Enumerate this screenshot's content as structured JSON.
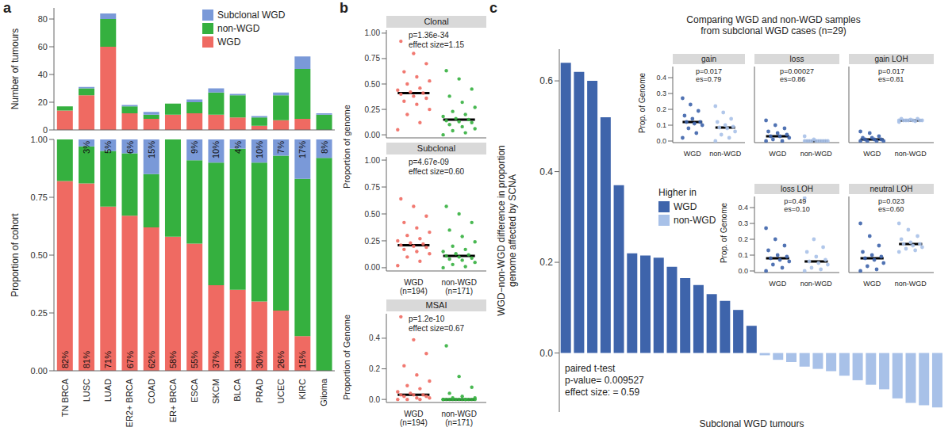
{
  "chart_data": [
    {
      "panel": "a",
      "type": "bar",
      "stacked": true,
      "legend": "top-right",
      "tick_labels": "y",
      "ylabel": "Number of tumours",
      "categories": [
        "TN BRCA",
        "LUSC",
        "LUAD",
        "HER2+ BRCA",
        "COAD",
        "ER+ BRCA",
        "ESCA",
        "SKCM",
        "BLCA",
        "PRAD",
        "UCEC",
        "KIRC",
        "Glioma"
      ],
      "series": [
        {
          "name": "WGD",
          "color": "#ef6a62",
          "values": [
            14,
            25,
            60,
            12,
            8,
            11,
            12,
            11,
            9,
            3,
            7,
            8,
            0
          ]
        },
        {
          "name": "non-WGD",
          "color": "#35b03f",
          "values": [
            3,
            5,
            20,
            5,
            3,
            8,
            8,
            16,
            16,
            6,
            18,
            36,
            11
          ]
        },
        {
          "name": "Subclonal WGD",
          "color": "#7a99d8",
          "values": [
            0,
            1,
            4,
            1,
            2,
            0,
            2,
            3,
            1,
            1,
            2,
            9,
            1
          ]
        }
      ],
      "ylim": [
        0,
        88
      ],
      "yticks": [
        0,
        20,
        40,
        60,
        80
      ]
    },
    {
      "type": "bar",
      "stacked": true,
      "data_labels": true,
      "ylabel": "Proportion of cohort",
      "categories": [
        "TN BRCA",
        "LUSC",
        "LUAD",
        "HER2+ BRCA",
        "COAD",
        "ER+ BRCA",
        "ESCA",
        "SKCM",
        "BLCA",
        "PRAD",
        "UCEC",
        "KIRC",
        "Glioma"
      ],
      "series": [
        {
          "name": "WGD",
          "color": "#ef6a62",
          "values": [
            0.82,
            0.81,
            0.71,
            0.67,
            0.62,
            0.58,
            0.55,
            0.37,
            0.35,
            0.3,
            0.26,
            0.15,
            0
          ],
          "value_labels": [
            "82%",
            "81%",
            "71%",
            "67%",
            "62%",
            "58%",
            "55%",
            "37%",
            "35%",
            "30%",
            "26%",
            "15%",
            null
          ]
        },
        {
          "name": "non-WGD",
          "color": "#35b03f",
          "values": [
            0.18,
            0.16,
            0.24,
            0.27,
            0.23,
            0.42,
            0.36,
            0.53,
            0.61,
            0.6,
            0.67,
            0.68,
            0.92
          ]
        },
        {
          "name": "Subclonal WGD",
          "color": "#7a99d8",
          "values": [
            0,
            0.03,
            0.05,
            0.06,
            0.15,
            0,
            0.09,
            0.1,
            0.04,
            0.1,
            0.07,
            0.17,
            0.08
          ],
          "value_labels": [
            null,
            "3%",
            "5%",
            "6%",
            "15%",
            null,
            "9%",
            "10%",
            "4%",
            "10%",
            "7%",
            "17%",
            "8%"
          ]
        }
      ],
      "ylim": [
        0,
        1
      ],
      "yticks": [
        {
          "value": 0,
          "label": "0.00"
        },
        0.25,
        {
          "value": 0.5,
          "label": "0.50"
        },
        0.75,
        {
          "value": 1,
          "label": "1.00"
        }
      ]
    },
    {
      "panel": "b",
      "type": "scatter",
      "title": "Clonal",
      "annotations": [
        "p=1.36e-34",
        "effect size=1.15"
      ],
      "ylabel": "Proportion of genome",
      "tick_labels": "y",
      "colors": [
        "#ef6a62",
        "#35b03f"
      ],
      "values": [
        [
          0.05,
          0.12,
          0.2,
          0.25,
          0.3,
          0.33,
          0.36,
          0.38,
          0.4,
          0.41,
          0.42,
          0.44,
          0.46,
          0.5,
          0.53,
          0.57,
          0.62,
          0.7,
          0.8,
          0.92
        ],
        [
          0.0,
          0.02,
          0.04,
          0.06,
          0.08,
          0.1,
          0.12,
          0.13,
          0.14,
          0.15,
          0.16,
          0.18,
          0.2,
          0.23,
          0.27,
          0.32,
          0.38,
          0.45,
          0.55,
          0.63
        ]
      ],
      "medians": [
        0.41,
        0.15
      ],
      "ylim": [
        -0.03,
        1.03
      ],
      "yticks": [
        {
          "value": 0,
          "label": "0.00"
        },
        0.25,
        {
          "value": 0.5,
          "label": "0.50"
        },
        0.75,
        {
          "value": 1,
          "label": "1.00"
        }
      ]
    },
    {
      "type": "scatter",
      "title": "Subclonal",
      "annotations": [
        "p=4.67e-09",
        "effect size=0.60"
      ],
      "categories": [
        "WGD\n(n=194)",
        "non-WGD\n(n=171)"
      ],
      "colors": [
        "#ef6a62",
        "#35b03f"
      ],
      "values": [
        [
          0.02,
          0.06,
          0.1,
          0.13,
          0.15,
          0.17,
          0.19,
          0.2,
          0.21,
          0.22,
          0.23,
          0.25,
          0.27,
          0.3,
          0.33,
          0.37,
          0.42,
          0.48,
          0.57,
          0.64
        ],
        [
          0.0,
          0.01,
          0.03,
          0.05,
          0.07,
          0.08,
          0.09,
          0.1,
          0.11,
          0.12,
          0.13,
          0.15,
          0.17,
          0.2,
          0.24,
          0.29,
          0.35,
          0.42,
          0.5,
          0.57
        ]
      ],
      "medians": [
        0.21,
        0.11
      ],
      "ylim": [
        -0.03,
        1.03
      ],
      "yticks": [
        {
          "value": 0,
          "label": "0.00"
        },
        0.25,
        {
          "value": 0.5,
          "label": "0.50"
        },
        0.75,
        {
          "value": 1,
          "label": "1.00"
        }
      ]
    },
    {
      "type": "scatter",
      "title": "MSAI",
      "annotations": [
        "p=1.2e-10",
        "effect size=0.67"
      ],
      "ylabel": "Proportion of Genome",
      "categories": [
        "WGD\n(n=194)",
        "non-WGD\n(n=171)"
      ],
      "colors": [
        "#ef6a62",
        "#35b03f"
      ],
      "values": [
        [
          0.0,
          0.0,
          0.0,
          0.01,
          0.01,
          0.02,
          0.02,
          0.03,
          0.03,
          0.03,
          0.04,
          0.05,
          0.07,
          0.09,
          0.12,
          0.16,
          0.22,
          0.3,
          0.39,
          0.54
        ],
        [
          0,
          0,
          0,
          0,
          0,
          0,
          0,
          0,
          0,
          0,
          0,
          0,
          0,
          0.01,
          0.01,
          0.02,
          0.04,
          0.08,
          0.15,
          0.35
        ]
      ],
      "medians": [
        0.03,
        0.0
      ],
      "ylim": [
        -0.02,
        0.56
      ],
      "yticks": [
        {
          "value": 0,
          "label": "0.0"
        },
        0.2,
        0.4
      ]
    },
    {
      "panel": "c",
      "type": "bar",
      "title": "Comparing WGD and non-WGD samples\nfrom subclonal WGD cases (n=29)",
      "ylabel": "WGD−non-WGD difference in proportion\ngenome affected by SCNA",
      "xlabel": "Subclonal WGD tumours",
      "tick_labels": "y",
      "categories": [
        null,
        null,
        null,
        null,
        null,
        null,
        null,
        null,
        null,
        null,
        null,
        null,
        null,
        null,
        null,
        null,
        null,
        null,
        null,
        null,
        null,
        null,
        null,
        null,
        null,
        null,
        null,
        null,
        null
      ],
      "values": [
        0.64,
        0.62,
        0.6,
        0.52,
        0.37,
        0.22,
        0.215,
        0.21,
        0.19,
        0.165,
        0.15,
        0.13,
        0.115,
        0.095,
        0.06,
        -0.005,
        -0.015,
        -0.02,
        -0.03,
        -0.035,
        -0.04,
        -0.05,
        -0.06,
        -0.07,
        -0.08,
        -0.1,
        -0.11,
        -0.115,
        -0.12
      ],
      "colors": [
        "#3e64ab",
        "#3e64ab",
        "#3e64ab",
        "#3e64ab",
        "#3e64ab",
        "#3e64ab",
        "#3e64ab",
        "#3e64ab",
        "#3e64ab",
        "#3e64ab",
        "#3e64ab",
        "#3e64ab",
        "#3e64ab",
        "#3e64ab",
        "#3e64ab",
        "#a8c1e8",
        "#a8c1e8",
        "#a8c1e8",
        "#a8c1e8",
        "#a8c1e8",
        "#a8c1e8",
        "#a8c1e8",
        "#a8c1e8",
        "#a8c1e8",
        "#a8c1e8",
        "#a8c1e8",
        "#a8c1e8",
        "#a8c1e8",
        "#a8c1e8"
      ],
      "legend": "center-left",
      "legend_title": "Higher in",
      "legend_entries": [
        {
          "name": "WGD",
          "color": "#3e64ab"
        },
        {
          "name": "non-WGD",
          "color": "#a8c1e8"
        }
      ],
      "annotations": [
        "paired t-test",
        "p-value= 0.009527",
        "effect size: = 0.59"
      ],
      "ylim": [
        -0.13,
        0.67
      ],
      "yticks": [
        {
          "value": 0,
          "label": "0.0"
        },
        0.2,
        0.4,
        0.6
      ]
    },
    {
      "type": "scatter",
      "title": "gain",
      "annotations": [
        "p=0.017",
        "es=0.79"
      ],
      "ylabel": "Prop. of Genome",
      "categories": [
        "WGD",
        "non-WGD"
      ],
      "colors": [
        "#3e64ab",
        "#a8c1e8"
      ],
      "values": [
        [
          0.02,
          0.05,
          0.08,
          0.1,
          0.11,
          0.12,
          0.12,
          0.14,
          0.16,
          0.19,
          0.23,
          0.27
        ],
        [
          0.0,
          0.02,
          0.04,
          0.06,
          0.08,
          0.085,
          0.09,
          0.1,
          0.12,
          0.14,
          0.18,
          0.22
        ]
      ],
      "medians": [
        0.12,
        0.085
      ],
      "ylim": [
        -0.01,
        0.47
      ],
      "yticks": [
        {
          "value": 0,
          "label": "0.0"
        },
        0.1,
        0.2,
        0.3,
        0.4
      ]
    },
    {
      "type": "scatter",
      "title": "loss",
      "annotations": [
        "p=0.00027",
        "es=0.86"
      ],
      "tick_labels": "x",
      "categories": [
        "WGD",
        "non-WGD"
      ],
      "colors": [
        "#3e64ab",
        "#a8c1e8"
      ],
      "values": [
        [
          0,
          0.0,
          0.01,
          0.02,
          0.03,
          0.03,
          0.04,
          0.05,
          0.06,
          0.08,
          0.1,
          0.13
        ],
        [
          0,
          0,
          0,
          0,
          0,
          0,
          0,
          0,
          0,
          0,
          0.01,
          0.03
        ]
      ],
      "medians": [
        0.03,
        0.0
      ],
      "ylim": [
        -0.01,
        0.47
      ],
      "yticks": [
        {
          "value": 0,
          "label": "0.0"
        },
        0.1,
        0.2,
        0.3,
        0.4
      ]
    },
    {
      "type": "scatter",
      "title": "gain LOH",
      "annotations": [
        "p=0.017",
        "es=0.81"
      ],
      "tick_labels": "x",
      "categories": [
        "WGD",
        "non-WGD"
      ],
      "colors": [
        "#3e64ab",
        "#a8c1e8"
      ],
      "values": [
        [
          0,
          0,
          0,
          0,
          0.01,
          0.01,
          0.01,
          0.02,
          0.02,
          0.03,
          0.05,
          0.06
        ],
        [
          0.12,
          0.125,
          0.13,
          0.13,
          0.13,
          0.13,
          0.13,
          0.135,
          0.14,
          0.14,
          0.13,
          0.13
        ]
      ],
      "medians": [
        0.01,
        0.13
      ],
      "ylim": [
        -0.01,
        0.47
      ],
      "yticks": [
        {
          "value": 0,
          "label": "0.0"
        },
        0.1,
        0.2,
        0.3,
        0.4
      ]
    },
    {
      "type": "scatter",
      "title": "loss LOH",
      "annotations": [
        "p=0.49",
        "es=0.10"
      ],
      "ylabel": "Prop. of Genome",
      "categories": [
        "WGD",
        "non-WGD"
      ],
      "colors": [
        "#3e64ab",
        "#a8c1e8"
      ],
      "values": [
        [
          0.0,
          0.02,
          0.04,
          0.06,
          0.07,
          0.08,
          0.09,
          0.1,
          0.13,
          0.16,
          0.2,
          0.27
        ],
        [
          0.0,
          0.01,
          0.02,
          0.04,
          0.05,
          0.06,
          0.07,
          0.09,
          0.12,
          0.15,
          0.2,
          0.46
        ]
      ],
      "medians": [
        0.08,
        0.06
      ],
      "ylim": [
        -0.01,
        0.47
      ],
      "yticks": [
        {
          "value": 0,
          "label": "0.0"
        },
        0.1,
        0.2,
        0.3,
        0.4
      ]
    },
    {
      "type": "scatter",
      "title": "neutral LOH",
      "annotations": [
        "p=0.023",
        "es=0.60"
      ],
      "tick_labels": "x",
      "categories": [
        "WGD",
        "non-WGD"
      ],
      "colors": [
        "#3e64ab",
        "#a8c1e8"
      ],
      "values": [
        [
          0,
          0.01,
          0.03,
          0.05,
          0.07,
          0.08,
          0.09,
          0.1,
          0.12,
          0.16,
          0.22,
          0.3
        ],
        [
          0.12,
          0.13,
          0.14,
          0.15,
          0.16,
          0.17,
          0.17,
          0.18,
          0.2,
          0.22,
          0.26,
          0.3
        ]
      ],
      "medians": [
        0.08,
        0.17
      ],
      "ylim": [
        -0.01,
        0.47
      ],
      "yticks": [
        {
          "value": 0,
          "label": "0.0"
        },
        0.1,
        0.2,
        0.3,
        0.4
      ]
    }
  ]
}
